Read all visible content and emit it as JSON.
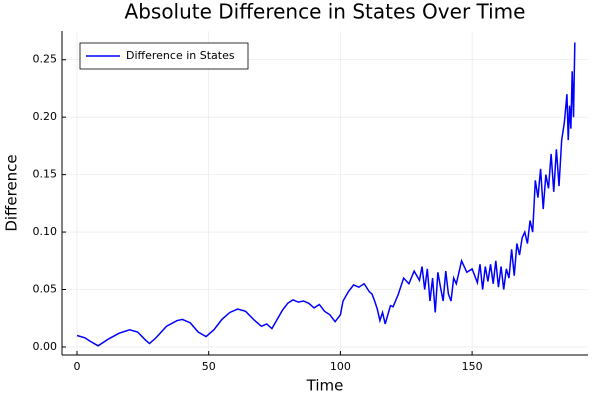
{
  "chart_data": {
    "type": "line",
    "title": "Absolute Difference in States Over Time",
    "xlabel": "Time",
    "ylabel": "Difference",
    "xlim": [
      -5.7,
      194
    ],
    "ylim": [
      -0.007,
      0.275
    ],
    "xticks": [
      0,
      50,
      100,
      150
    ],
    "yticks": [
      {
        "value": 0,
        "label": "0.00"
      },
      {
        "value": 0.05,
        "label": "0.05"
      },
      {
        "value": 0.1,
        "label": "0.10"
      },
      {
        "value": 0.15,
        "label": "0.15"
      },
      {
        "value": 0.2,
        "label": "0.20"
      },
      {
        "value": 0.25,
        "label": "0.25"
      }
    ],
    "grid": true,
    "legend": "top-left",
    "series": [
      {
        "name": "Difference in States",
        "color": "#0000ff",
        "x": [
          0,
          3,
          5,
          8,
          12,
          16,
          20,
          23,
          26,
          27.5,
          30,
          34,
          38,
          40,
          43,
          46,
          49,
          52,
          55,
          58,
          61,
          64,
          67,
          70,
          72,
          74,
          76,
          78,
          80,
          82,
          84,
          86,
          88,
          90,
          92,
          94,
          96,
          98,
          100,
          101,
          103,
          105,
          107,
          109,
          111,
          112,
          113,
          114,
          115,
          116,
          117,
          118,
          119,
          120,
          122,
          124,
          126,
          128,
          130,
          131,
          132,
          133,
          134,
          135,
          136,
          137,
          138,
          139,
          140,
          141,
          142,
          143,
          144,
          146,
          148,
          150,
          152,
          153,
          154,
          155,
          156,
          157,
          158,
          159,
          160,
          161,
          162,
          163,
          164,
          165,
          166,
          167,
          168,
          169,
          170,
          171,
          172,
          173,
          174,
          175,
          176,
          177,
          178,
          179,
          180,
          181,
          182,
          183,
          184,
          185,
          186,
          186.5,
          187,
          187.5,
          188,
          188.5,
          189
        ],
        "values": [
          0.01,
          0.008,
          0.005,
          0.001,
          0.007,
          0.012,
          0.015,
          0.013,
          0.006,
          0.003,
          0.008,
          0.018,
          0.023,
          0.024,
          0.021,
          0.013,
          0.009,
          0.015,
          0.024,
          0.03,
          0.033,
          0.031,
          0.024,
          0.018,
          0.02,
          0.016,
          0.024,
          0.032,
          0.038,
          0.041,
          0.039,
          0.04,
          0.038,
          0.034,
          0.037,
          0.031,
          0.028,
          0.022,
          0.028,
          0.04,
          0.048,
          0.054,
          0.052,
          0.055,
          0.048,
          0.046,
          0.04,
          0.033,
          0.023,
          0.03,
          0.02,
          0.028,
          0.036,
          0.035,
          0.046,
          0.06,
          0.055,
          0.066,
          0.058,
          0.07,
          0.05,
          0.068,
          0.04,
          0.06,
          0.03,
          0.065,
          0.052,
          0.04,
          0.066,
          0.046,
          0.04,
          0.06,
          0.055,
          0.075,
          0.065,
          0.068,
          0.056,
          0.072,
          0.05,
          0.07,
          0.057,
          0.072,
          0.055,
          0.075,
          0.052,
          0.07,
          0.05,
          0.068,
          0.06,
          0.085,
          0.062,
          0.09,
          0.08,
          0.095,
          0.1,
          0.09,
          0.11,
          0.1,
          0.145,
          0.13,
          0.155,
          0.12,
          0.15,
          0.138,
          0.168,
          0.135,
          0.172,
          0.14,
          0.18,
          0.195,
          0.22,
          0.18,
          0.21,
          0.19,
          0.24,
          0.2,
          0.265
        ]
      }
    ]
  }
}
